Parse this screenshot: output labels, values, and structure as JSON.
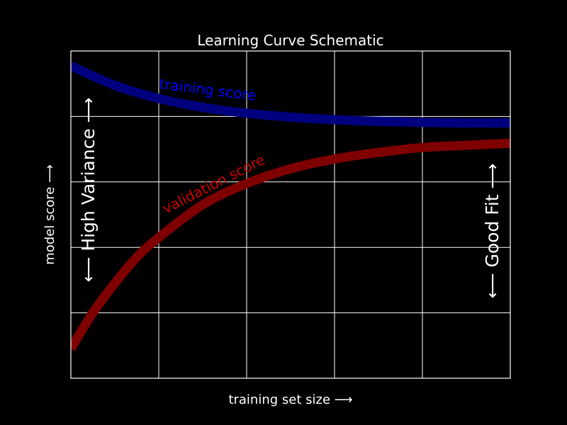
{
  "chart_data": {
    "type": "line",
    "title": "Learning Curve Schematic",
    "xlabel": "training set size ⟶",
    "ylabel": "model score ⟶",
    "grid": true,
    "xlim": [
      0,
      1
    ],
    "ylim": [
      0,
      1
    ],
    "series": [
      {
        "name": "training score",
        "color": "#00007f",
        "label_color": "#0000ff",
        "x": [
          0.0,
          0.1,
          0.2,
          0.3,
          0.4,
          0.5,
          0.6,
          0.7,
          0.8,
          0.9,
          1.0
        ],
        "y": [
          0.955,
          0.895,
          0.855,
          0.828,
          0.81,
          0.798,
          0.79,
          0.785,
          0.782,
          0.78,
          0.78
        ]
      },
      {
        "name": "validation score",
        "color": "#7f0000",
        "label_color": "#cc0000",
        "x": [
          0.0,
          0.05,
          0.1,
          0.15,
          0.2,
          0.3,
          0.4,
          0.5,
          0.6,
          0.7,
          0.8,
          0.9,
          1.0
        ],
        "y": [
          0.09,
          0.2,
          0.29,
          0.37,
          0.43,
          0.53,
          0.595,
          0.64,
          0.67,
          0.69,
          0.705,
          0.712,
          0.718
        ]
      }
    ],
    "annotations": [
      {
        "text": "⟵ High Variance ⟶",
        "x": 0.04,
        "y": 0.5,
        "rotation": 90
      },
      {
        "text": "⟵ Good Fit ⟶",
        "x": 0.955,
        "y": 0.5,
        "rotation": 90
      }
    ]
  }
}
